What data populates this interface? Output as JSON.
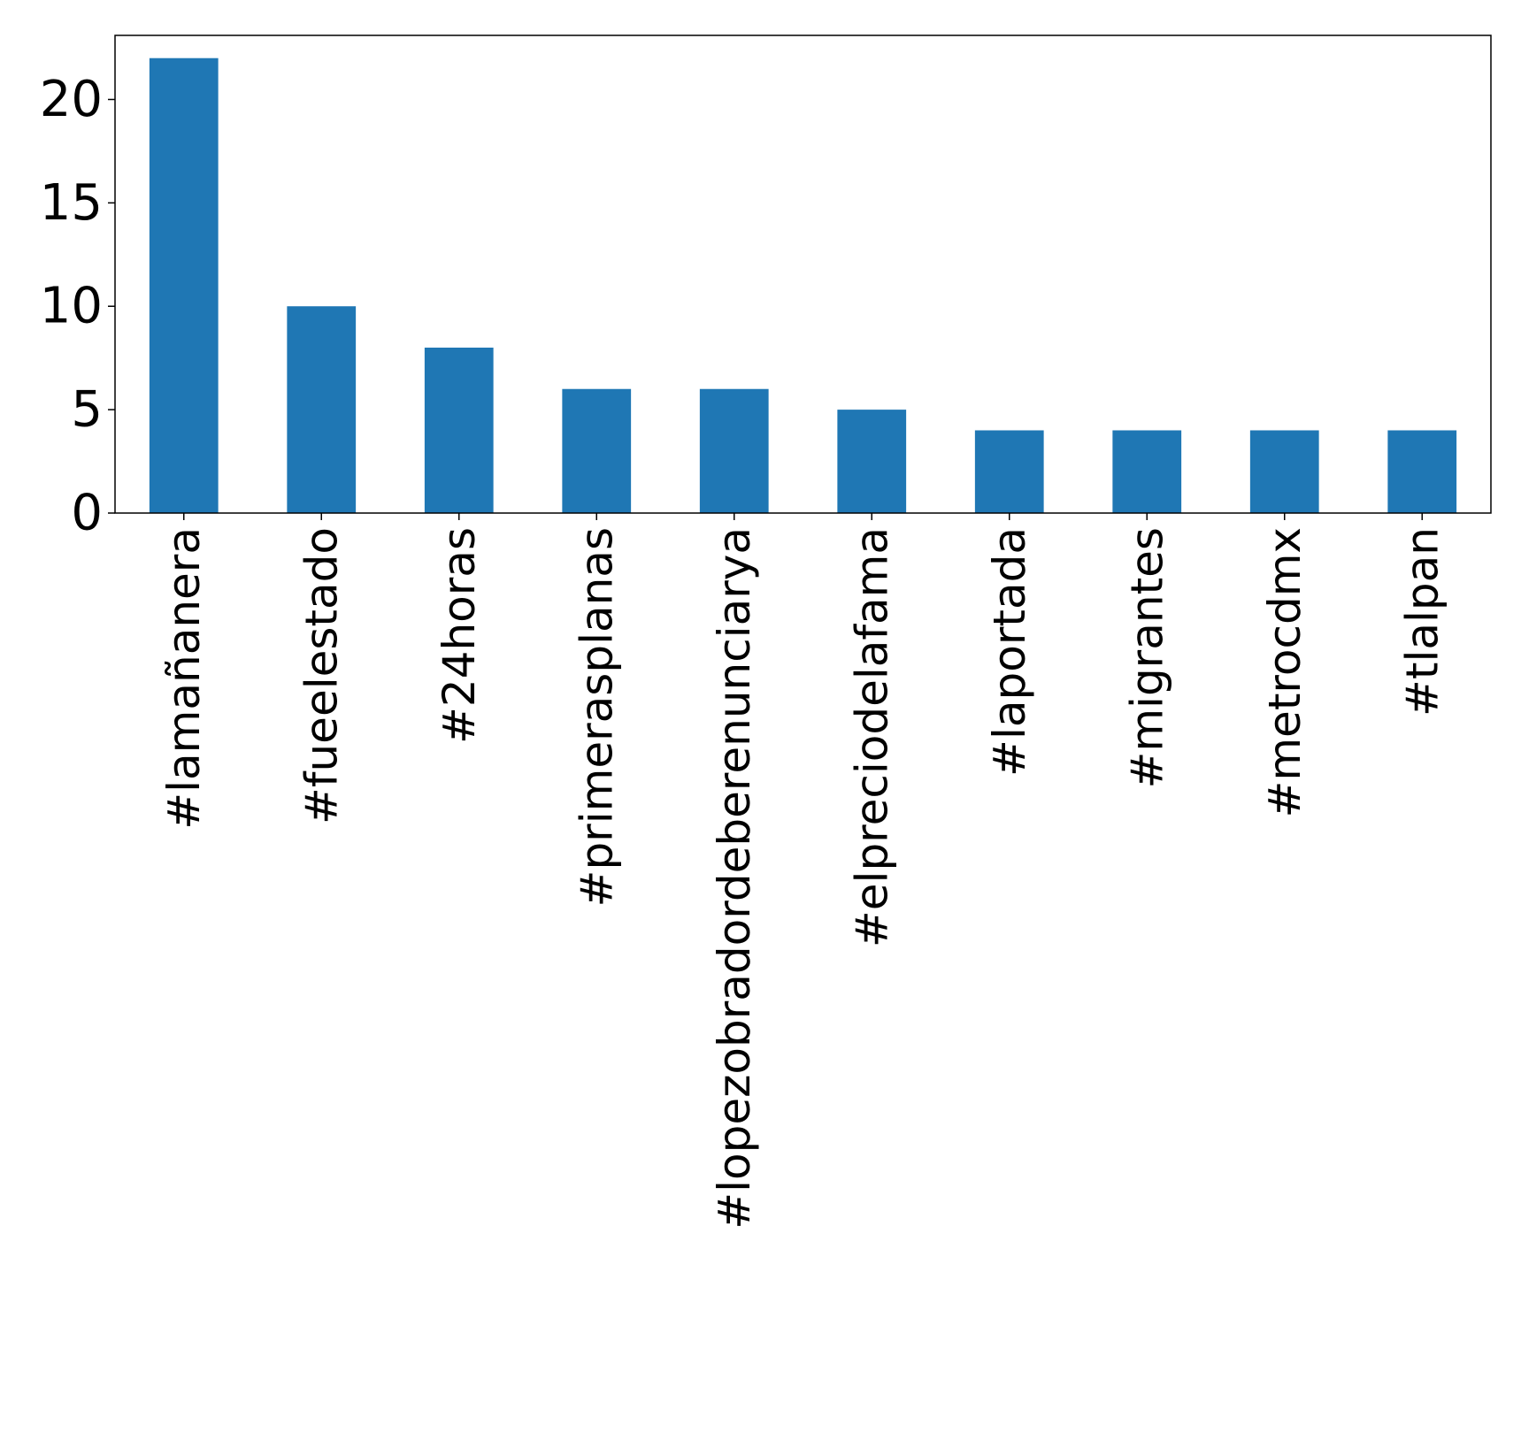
{
  "chart_data": {
    "type": "bar",
    "title": "",
    "xlabel": "",
    "ylabel": "",
    "categories": [
      "#lamañanera",
      "#fueelestado",
      "#24horas",
      "#primerasplanas",
      "#lopezobradordeberenunciarya",
      "#elpreciodelafama",
      "#laportada",
      "#migrantes",
      "#metrocdmx",
      "#tlalpan"
    ],
    "values": [
      22,
      10,
      8,
      6,
      6,
      5,
      4,
      4,
      4,
      4
    ],
    "ylim": [
      0,
      23.1
    ],
    "yticks": [
      0,
      5,
      10,
      15,
      20
    ],
    "grid": false,
    "legend": "none",
    "bar_color": "#1f77b4"
  }
}
